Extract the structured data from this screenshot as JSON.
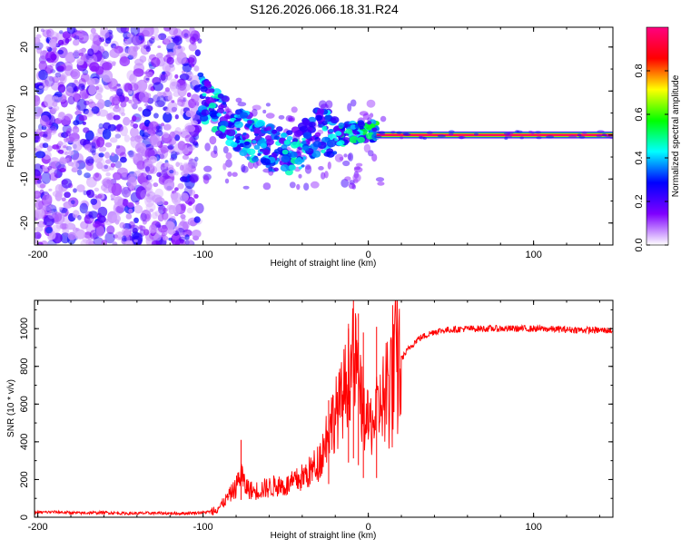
{
  "chart_data": [
    {
      "type": "heatmap",
      "title": "S126.2026.066.18.31.R24",
      "xlabel": "Height of straight line (km)",
      "ylabel": "Frequency (Hz)",
      "xlim": [
        -202,
        148
      ],
      "ylim": [
        -25,
        24.5
      ],
      "xticks": [
        -200,
        -100,
        0,
        100
      ],
      "xtick_labels": [
        "-200",
        "-100",
        "0",
        "100"
      ],
      "yticks": [
        -20,
        -10,
        0,
        10,
        20
      ],
      "ytick_labels": [
        "-20",
        "-10",
        "0",
        "10",
        "20"
      ],
      "noise_region_x": [
        -202,
        -102
      ],
      "noise_region_amplitude": [
        0.05,
        0.3
      ],
      "blob_track": [
        {
          "x": -102,
          "freq": 9,
          "amp": 0.4
        },
        {
          "x": -90,
          "freq": 5,
          "amp": 0.45
        },
        {
          "x": -80,
          "freq": 2,
          "amp": 0.4
        },
        {
          "x": -70,
          "freq": -1,
          "amp": 0.45
        },
        {
          "x": -60,
          "freq": -3,
          "amp": 0.4
        },
        {
          "x": -45,
          "freq": -4,
          "amp": 0.45
        },
        {
          "x": -30,
          "freq": 1,
          "amp": 0.4
        },
        {
          "x": -15,
          "freq": 0,
          "amp": 0.5
        },
        {
          "x": 0,
          "freq": 1,
          "amp": 0.5
        },
        {
          "x": 5,
          "freq": 0.5,
          "amp": 0.55
        }
      ],
      "steady_tone": {
        "freq": 0,
        "x_start": 5,
        "x_end": 148,
        "amp": 0.97
      },
      "colorbar": {
        "label": "Normalized spectral amplitude",
        "range": [
          0,
          1
        ],
        "ticks": [
          0.0,
          0.2,
          0.4,
          0.6,
          0.8
        ],
        "tick_labels": [
          "0.0",
          "0.2",
          "0.4",
          "0.6",
          "0.8"
        ],
        "colors": [
          "#ffffff",
          "#7f00ff",
          "#0000ff",
          "#00ffff",
          "#00ff00",
          "#ffff00",
          "#ff0000",
          "#ff0080"
        ]
      }
    },
    {
      "type": "line",
      "xlabel": "Height of straight line (km)",
      "ylabel": "SNR (10 * v/v)",
      "xlim": [
        -202,
        148
      ],
      "ylim": [
        0,
        1150
      ],
      "xticks": [
        -200,
        -100,
        0,
        100
      ],
      "xtick_labels": [
        "-200",
        "-100",
        "0",
        "100"
      ],
      "yticks": [
        0,
        200,
        400,
        600,
        800,
        1000
      ],
      "ytick_labels": [
        "0",
        "200",
        "400",
        "600",
        "800",
        "1000"
      ],
      "line_color": "#ff0000",
      "series": [
        {
          "name": "SNR",
          "x": [
            -202,
            -190,
            -175,
            -160,
            -145,
            -130,
            -115,
            -100,
            -95,
            -90,
            -85,
            -80,
            -77,
            -75,
            -70,
            -65,
            -60,
            -55,
            -50,
            -45,
            -40,
            -35,
            -30,
            -27,
            -25,
            -22,
            -20,
            -17,
            -15,
            -13,
            -11,
            -9,
            -7,
            -5,
            -3,
            0,
            3,
            7,
            10,
            13,
            16,
            20,
            25,
            30,
            40,
            50,
            60,
            80,
            100,
            120,
            148
          ],
          "y": [
            25,
            28,
            22,
            25,
            20,
            22,
            20,
            25,
            30,
            50,
            100,
            150,
            230,
            160,
            130,
            140,
            150,
            160,
            155,
            175,
            200,
            230,
            280,
            350,
            420,
            480,
            520,
            560,
            620,
            700,
            750,
            780,
            760,
            620,
            520,
            460,
            480,
            560,
            650,
            720,
            780,
            840,
            900,
            945,
            985,
            995,
            1000,
            1000,
            1000,
            995,
            990
          ]
        }
      ],
      "spikes": [
        {
          "x": -9,
          "y": 1150
        },
        {
          "x": -6,
          "y": 1080
        },
        {
          "x": -12,
          "y": 1000
        },
        {
          "x": -3,
          "y": 980
        },
        {
          "x": 5,
          "y": 1010
        },
        {
          "x": -77,
          "y": 410
        },
        {
          "x": -24,
          "y": 620
        }
      ]
    }
  ]
}
